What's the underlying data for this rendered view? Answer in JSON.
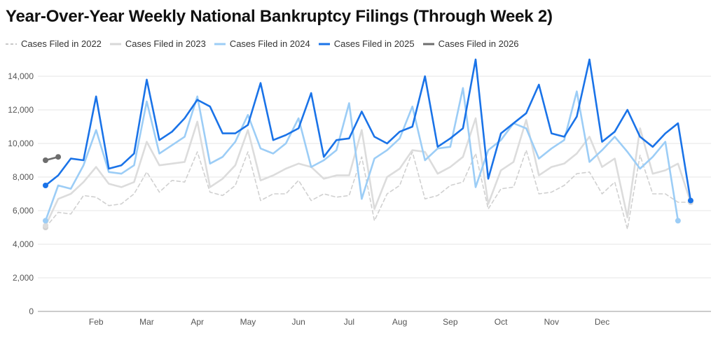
{
  "chart_data": {
    "type": "line",
    "title": "Year-Over-Year Weekly National Bankruptcy Filings (Through Week 2)",
    "xlabel": "",
    "ylabel": "",
    "ylim": [
      0,
      15000
    ],
    "yticks": [
      0,
      2000,
      4000,
      6000,
      8000,
      10000,
      12000,
      14000
    ],
    "ytick_labels": [
      "0",
      "2,000",
      "4,000",
      "6,000",
      "8,000",
      "10,000",
      "12,000",
      "14,000"
    ],
    "xlim": [
      1,
      53
    ],
    "xticks": [
      {
        "label": "Feb",
        "week": 5
      },
      {
        "label": "Mar",
        "week": 9
      },
      {
        "label": "Apr",
        "week": 13
      },
      {
        "label": "May",
        "week": 17
      },
      {
        "label": "Jun",
        "week": 21
      },
      {
        "label": "Jul",
        "week": 25
      },
      {
        "label": "Aug",
        "week": 29
      },
      {
        "label": "Sep",
        "week": 33
      },
      {
        "label": "Oct",
        "week": 37
      },
      {
        "label": "Nov",
        "week": 41
      },
      {
        "label": "Dec",
        "week": 45
      }
    ],
    "grid": true,
    "legend_position": "top-left",
    "series": [
      {
        "name": "Cases Filed in 2022",
        "color": "#d0d0d0",
        "dash": true,
        "values": [
          5000,
          5900,
          5800,
          6900,
          6800,
          6300,
          6400,
          7000,
          8300,
          7100,
          7800,
          7700,
          9500,
          7100,
          6900,
          7500,
          9500,
          6600,
          7000,
          7000,
          7800,
          6600,
          7000,
          6800,
          6900,
          9200,
          5400,
          7000,
          7500,
          9500,
          6700,
          6900,
          7500,
          7700,
          9400,
          6100,
          7300,
          7400,
          9600,
          7000,
          7100,
          7500,
          8200,
          8300,
          7000,
          7700,
          4900,
          9300,
          7000,
          7000,
          6500,
          6500
        ]
      },
      {
        "name": "Cases Filed in 2023",
        "color": "#dcdcdc",
        "dash": false,
        "values": [
          5100,
          6700,
          7000,
          7700,
          8600,
          7600,
          7400,
          7700,
          10100,
          8700,
          8800,
          8900,
          11300,
          7400,
          7900,
          8700,
          10800,
          7800,
          8100,
          8500,
          8800,
          8600,
          7900,
          8100,
          8100,
          10800,
          6100,
          8000,
          8500,
          9600,
          9500,
          8200,
          8600,
          9200,
          11500,
          6400,
          8400,
          8900,
          11400,
          8100,
          8600,
          8800,
          9400,
          10400,
          8600,
          9100,
          5600,
          10900,
          8200,
          8400,
          8800,
          6500
        ]
      },
      {
        "name": "Cases Filed in 2024",
        "color": "#9ccdf6",
        "dash": false,
        "values": [
          5400,
          7500,
          7300,
          8700,
          10800,
          8300,
          8200,
          8700,
          12500,
          9400,
          9900,
          10400,
          12800,
          8800,
          9200,
          10100,
          11700,
          9700,
          9400,
          10000,
          11500,
          8600,
          9000,
          9600,
          12400,
          6700,
          9100,
          9600,
          10300,
          12200,
          9000,
          9700,
          9800,
          13300,
          7400,
          9600,
          10200,
          11200,
          10900,
          9100,
          9700,
          10200,
          13100,
          8900,
          9600,
          10400,
          9500,
          8500,
          9200,
          10100,
          5400
        ]
      },
      {
        "name": "Cases Filed in 2025",
        "color": "#1a73e8",
        "dash": false,
        "values": [
          7500,
          8100,
          9100,
          9000,
          12800,
          8500,
          8700,
          9400,
          13800,
          10200,
          10700,
          11500,
          12600,
          12200,
          10600,
          10600,
          11100,
          13600,
          10200,
          10500,
          10900,
          13000,
          9200,
          10200,
          10300,
          11900,
          10400,
          10000,
          10700,
          11000,
          14000,
          9800,
          10300,
          10900,
          15000,
          7900,
          10600,
          11200,
          11800,
          13500,
          10600,
          10400,
          11600,
          15000,
          10100,
          10700,
          12000,
          10400,
          9800,
          10600,
          11200,
          6600
        ]
      },
      {
        "name": "Cases Filed in 2026",
        "color": "#6d6d6d",
        "dash": false,
        "values": [
          9000,
          9200
        ]
      }
    ]
  }
}
